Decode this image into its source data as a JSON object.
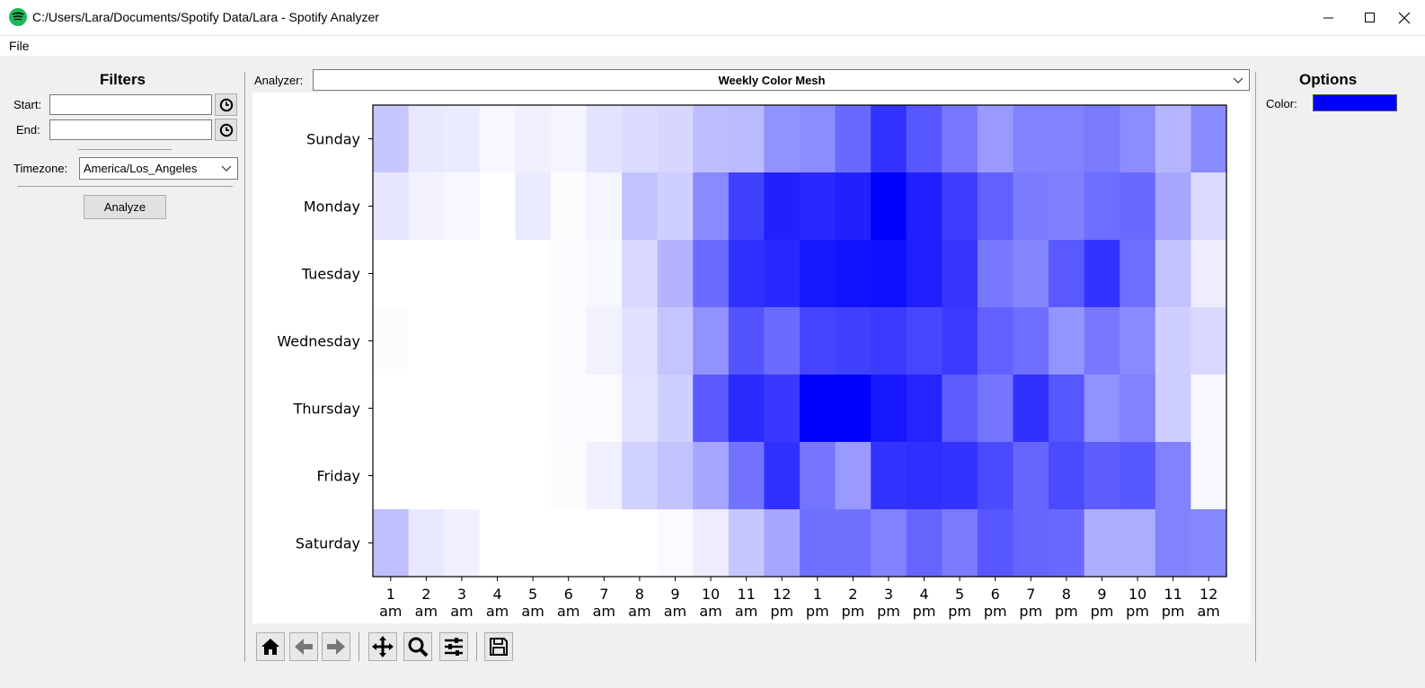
{
  "window": {
    "title": "C:/Users/Lara/Documents/Spotify Data/Lara - Spotify Analyzer",
    "minimize_icon": "minimize-icon",
    "maximize_icon": "maximize-icon",
    "close_icon": "close-icon"
  },
  "menu": {
    "file": "File"
  },
  "filters": {
    "title": "Filters",
    "start_label": "Start:",
    "start_value": "",
    "end_label": "End:",
    "end_value": "",
    "clock_icon": "clock-icon",
    "timezone_label": "Timezone:",
    "timezone_value": "America/Los_Angeles",
    "analyze_label": "Analyze"
  },
  "analyzer": {
    "label": "Analyzer:",
    "value": "Weekly Color Mesh"
  },
  "options": {
    "title": "Options",
    "color_label": "Color:",
    "color_value": "#0000ff"
  },
  "toolbar": [
    "home-icon",
    "back-icon",
    "forward-icon",
    "pan-icon",
    "zoom-icon",
    "configure-icon",
    "save-icon"
  ],
  "chart_data": {
    "type": "heatmap",
    "color": "#0000ff",
    "rows": [
      "Sunday",
      "Monday",
      "Tuesday",
      "Wednesday",
      "Thursday",
      "Friday",
      "Saturday"
    ],
    "columns": [
      "1 am",
      "2 am",
      "3 am",
      "4 am",
      "5 am",
      "6 am",
      "7 am",
      "8 am",
      "9 am",
      "10 am",
      "11 am",
      "12 pm",
      "1 pm",
      "2 pm",
      "3 pm",
      "4 pm",
      "5 pm",
      "6 pm",
      "7 pm",
      "8 pm",
      "9 pm",
      "10 pm",
      "11 pm",
      "12 am"
    ],
    "values": [
      [
        0.22,
        0.09,
        0.08,
        0.03,
        0.06,
        0.04,
        0.11,
        0.14,
        0.16,
        0.26,
        0.27,
        0.43,
        0.45,
        0.59,
        0.8,
        0.66,
        0.53,
        0.4,
        0.49,
        0.49,
        0.52,
        0.45,
        0.29,
        0.46
      ],
      [
        0.1,
        0.05,
        0.03,
        0.0,
        0.08,
        0.01,
        0.04,
        0.24,
        0.19,
        0.46,
        0.75,
        0.87,
        0.84,
        0.87,
        1.0,
        0.88,
        0.76,
        0.62,
        0.52,
        0.5,
        0.57,
        0.59,
        0.35,
        0.14
      ],
      [
        0.0,
        0.0,
        0.0,
        0.0,
        0.0,
        0.02,
        0.03,
        0.15,
        0.3,
        0.58,
        0.81,
        0.84,
        0.91,
        0.93,
        0.94,
        0.88,
        0.79,
        0.53,
        0.48,
        0.65,
        0.8,
        0.57,
        0.24,
        0.07
      ],
      [
        0.01,
        0.0,
        0.0,
        0.0,
        0.0,
        0.02,
        0.05,
        0.12,
        0.23,
        0.43,
        0.67,
        0.58,
        0.73,
        0.75,
        0.77,
        0.72,
        0.77,
        0.62,
        0.57,
        0.42,
        0.53,
        0.46,
        0.19,
        0.15
      ],
      [
        0.0,
        0.0,
        0.0,
        0.0,
        0.0,
        0.02,
        0.02,
        0.11,
        0.19,
        0.65,
        0.83,
        0.78,
        1.0,
        1.0,
        0.91,
        0.86,
        0.64,
        0.54,
        0.81,
        0.66,
        0.43,
        0.49,
        0.2,
        0.03
      ],
      [
        0.0,
        0.0,
        0.0,
        0.0,
        0.0,
        0.01,
        0.06,
        0.18,
        0.24,
        0.35,
        0.55,
        0.81,
        0.54,
        0.4,
        0.8,
        0.82,
        0.8,
        0.71,
        0.6,
        0.71,
        0.63,
        0.66,
        0.49,
        0.03
      ],
      [
        0.25,
        0.09,
        0.06,
        0.0,
        0.0,
        0.0,
        0.0,
        0.0,
        0.02,
        0.07,
        0.22,
        0.35,
        0.56,
        0.56,
        0.49,
        0.6,
        0.52,
        0.66,
        0.6,
        0.59,
        0.32,
        0.32,
        0.49,
        0.47
      ]
    ]
  }
}
